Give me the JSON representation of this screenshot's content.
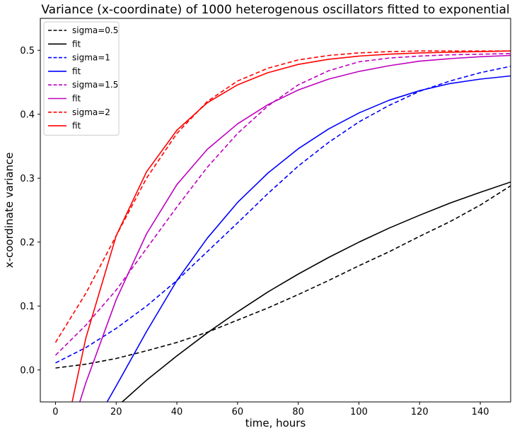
{
  "chart_data": {
    "type": "line",
    "title": "Variance (x-coordinate) of 1000 heterogenous oscillators fitted to exponential",
    "xlabel": "time, hours",
    "ylabel": "x-coordinate variance",
    "xlim": [
      -5,
      150
    ],
    "ylim": [
      -0.05,
      0.55
    ],
    "xticks": [
      0,
      20,
      40,
      60,
      80,
      100,
      120,
      140
    ],
    "yticks": [
      0.0,
      0.1,
      0.2,
      0.3,
      0.4,
      0.5
    ],
    "xtick_labels": [
      "0",
      "20",
      "40",
      "60",
      "80",
      "100",
      "120",
      "140"
    ],
    "ytick_labels": [
      "0.0",
      "0.1",
      "0.2",
      "0.3",
      "0.4",
      "0.5"
    ],
    "grid": false,
    "legend_position": "top-left",
    "x": [
      0,
      10,
      20,
      30,
      40,
      50,
      60,
      70,
      80,
      90,
      100,
      110,
      120,
      130,
      140,
      150
    ],
    "series": [
      {
        "name": "sigma=0.5",
        "color": "#000000",
        "style": "dashed",
        "points": [
          [
            0,
            0.003
          ],
          [
            10,
            0.009
          ],
          [
            20,
            0.018
          ],
          [
            30,
            0.03
          ],
          [
            40,
            0.043
          ],
          [
            50,
            0.059
          ],
          [
            60,
            0.078
          ],
          [
            70,
            0.097
          ],
          [
            80,
            0.118
          ],
          [
            90,
            0.14
          ],
          [
            100,
            0.163
          ],
          [
            110,
            0.185
          ],
          [
            120,
            0.209
          ],
          [
            130,
            0.232
          ],
          [
            140,
            0.258
          ],
          [
            150,
            0.288
          ]
        ]
      },
      {
        "name": "fit",
        "color": "#000000",
        "style": "solid",
        "points": [
          [
            22,
            -0.05
          ],
          [
            30,
            -0.016
          ],
          [
            40,
            0.022
          ],
          [
            50,
            0.058
          ],
          [
            60,
            0.091
          ],
          [
            70,
            0.122
          ],
          [
            80,
            0.15
          ],
          [
            90,
            0.176
          ],
          [
            100,
            0.2
          ],
          [
            110,
            0.222
          ],
          [
            120,
            0.242
          ],
          [
            130,
            0.261
          ],
          [
            140,
            0.278
          ],
          [
            150,
            0.294
          ]
        ]
      },
      {
        "name": "sigma=1",
        "color": "#0000ff",
        "style": "dashed",
        "points": [
          [
            0,
            0.011
          ],
          [
            10,
            0.035
          ],
          [
            20,
            0.065
          ],
          [
            30,
            0.1
          ],
          [
            40,
            0.14
          ],
          [
            50,
            0.185
          ],
          [
            60,
            0.23
          ],
          [
            70,
            0.276
          ],
          [
            80,
            0.319
          ],
          [
            90,
            0.356
          ],
          [
            100,
            0.388
          ],
          [
            110,
            0.414
          ],
          [
            120,
            0.436
          ],
          [
            130,
            0.452
          ],
          [
            140,
            0.465
          ],
          [
            150,
            0.475
          ]
        ]
      },
      {
        "name": "fit",
        "color": "#0000ff",
        "style": "solid",
        "points": [
          [
            17,
            -0.05
          ],
          [
            20,
            -0.025
          ],
          [
            30,
            0.06
          ],
          [
            40,
            0.14
          ],
          [
            50,
            0.206
          ],
          [
            60,
            0.262
          ],
          [
            70,
            0.308
          ],
          [
            80,
            0.346
          ],
          [
            90,
            0.377
          ],
          [
            100,
            0.402
          ],
          [
            110,
            0.422
          ],
          [
            120,
            0.437
          ],
          [
            130,
            0.448
          ],
          [
            140,
            0.455
          ],
          [
            150,
            0.46
          ]
        ]
      },
      {
        "name": "sigma=1.5",
        "color": "#bf00bf",
        "style": "dashed",
        "points": [
          [
            0,
            0.023
          ],
          [
            10,
            0.07
          ],
          [
            20,
            0.125
          ],
          [
            30,
            0.19
          ],
          [
            40,
            0.255
          ],
          [
            50,
            0.317
          ],
          [
            60,
            0.37
          ],
          [
            70,
            0.413
          ],
          [
            80,
            0.446
          ],
          [
            90,
            0.468
          ],
          [
            100,
            0.482
          ],
          [
            110,
            0.488
          ],
          [
            120,
            0.491
          ],
          [
            130,
            0.493
          ],
          [
            140,
            0.494
          ],
          [
            150,
            0.495
          ]
        ]
      },
      {
        "name": "fit",
        "color": "#bf00bf",
        "style": "solid",
        "points": [
          [
            8,
            -0.05
          ],
          [
            10,
            -0.02
          ],
          [
            20,
            0.11
          ],
          [
            30,
            0.213
          ],
          [
            40,
            0.29
          ],
          [
            50,
            0.345
          ],
          [
            60,
            0.385
          ],
          [
            70,
            0.415
          ],
          [
            80,
            0.438
          ],
          [
            90,
            0.455
          ],
          [
            100,
            0.467
          ],
          [
            110,
            0.476
          ],
          [
            120,
            0.483
          ],
          [
            130,
            0.487
          ],
          [
            140,
            0.49
          ],
          [
            150,
            0.492
          ]
        ]
      },
      {
        "name": "sigma=2",
        "color": "#ff0000",
        "style": "dashed",
        "points": [
          [
            0,
            0.043
          ],
          [
            10,
            0.12
          ],
          [
            20,
            0.21
          ],
          [
            30,
            0.3
          ],
          [
            40,
            0.37
          ],
          [
            50,
            0.42
          ],
          [
            60,
            0.452
          ],
          [
            70,
            0.472
          ],
          [
            80,
            0.485
          ],
          [
            90,
            0.492
          ],
          [
            100,
            0.496
          ],
          [
            110,
            0.498
          ],
          [
            120,
            0.499
          ],
          [
            130,
            0.499
          ],
          [
            140,
            0.499
          ],
          [
            150,
            0.499
          ]
        ]
      },
      {
        "name": "fit",
        "color": "#ff0000",
        "style": "solid",
        "points": [
          [
            5.5,
            -0.05
          ],
          [
            10,
            0.05
          ],
          [
            20,
            0.21
          ],
          [
            30,
            0.31
          ],
          [
            40,
            0.375
          ],
          [
            50,
            0.418
          ],
          [
            60,
            0.446
          ],
          [
            70,
            0.465
          ],
          [
            80,
            0.478
          ],
          [
            90,
            0.486
          ],
          [
            100,
            0.491
          ],
          [
            110,
            0.494
          ],
          [
            120,
            0.496
          ],
          [
            130,
            0.497
          ],
          [
            140,
            0.498
          ],
          [
            150,
            0.499
          ]
        ]
      }
    ]
  }
}
